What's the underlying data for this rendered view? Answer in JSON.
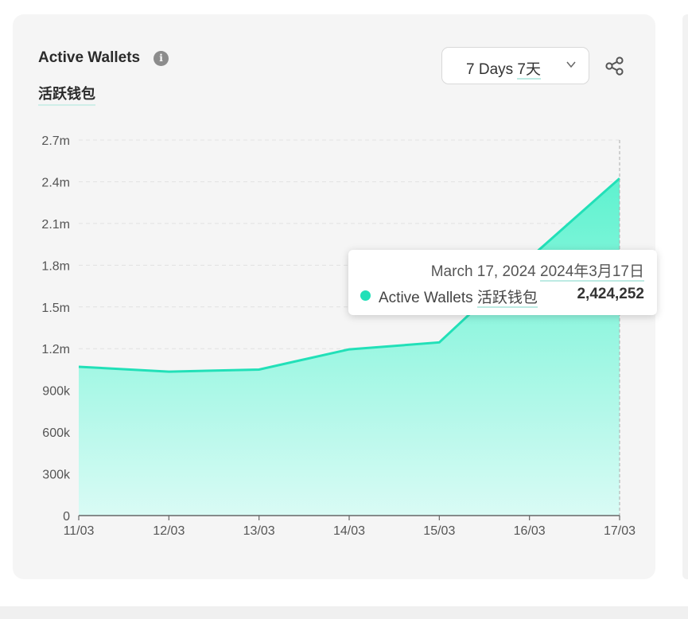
{
  "header": {
    "title": "Active Wallets",
    "subtitle": "活跃钱包",
    "info_icon": "info-icon"
  },
  "controls": {
    "range_label_en": "7 Days ",
    "range_label_zh": "7天",
    "chevron_icon": "chevron-down-icon",
    "share_icon": "share-icon"
  },
  "tooltip": {
    "date_en": "March 17, 2024 ",
    "date_zh": "2024年3月17日",
    "series_en": "Active Wallets ",
    "series_zh": "活跃钱包",
    "value": "2,424,252"
  },
  "colors": {
    "accent": "#22e0b8",
    "area_top": "#5ef2cf",
    "area_bottom": "#d9fbf5"
  },
  "chart_data": {
    "type": "area",
    "title": "Active Wallets",
    "x": [
      "11/03",
      "12/03",
      "13/03",
      "14/03",
      "15/03",
      "16/03",
      "17/03"
    ],
    "series": [
      {
        "name": "Active Wallets",
        "values": [
          1070000,
          1035000,
          1050000,
          1195000,
          1245000,
          1850000,
          2424252
        ]
      }
    ],
    "y_ticks": [
      0,
      300000,
      600000,
      900000,
      1200000,
      1500000,
      1800000,
      2100000,
      2400000,
      2700000
    ],
    "y_tick_labels": [
      "0",
      "300k",
      "600k",
      "900k",
      "1.2m",
      "1.5m",
      "1.8m",
      "2.1m",
      "2.4m",
      "2.7m"
    ],
    "ylim": [
      0,
      2700000
    ],
    "grid": true,
    "highlighted_index": 6
  }
}
